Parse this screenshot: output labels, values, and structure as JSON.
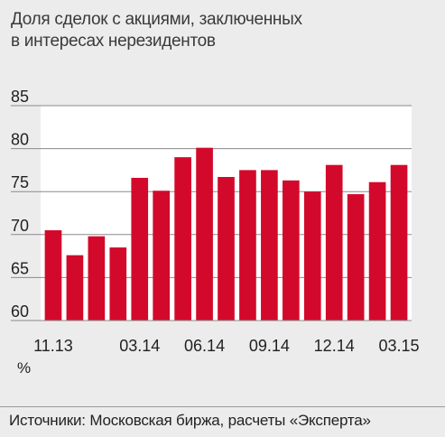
{
  "title_line1": "Доля сделок с акциями, заключенных",
  "title_line2": "в интересах нерезидентов",
  "unit": "%",
  "source": "Источники: Московская биржа, расчеты «Эксперта»",
  "colors": {
    "bar": "#d3092b",
    "background": "#ececec",
    "plot_bg": "#ffffff"
  },
  "chart_data": {
    "type": "bar",
    "title": "Доля сделок с акциями, заключенных в интересах нерезидентов",
    "ylabel": "%",
    "ylim": [
      60,
      85
    ],
    "yticks": [
      60,
      65,
      70,
      75,
      80,
      85
    ],
    "grid": true,
    "categories": [
      "11.13",
      "12.13",
      "01.14",
      "02.14",
      "03.14",
      "04.14",
      "05.14",
      "06.14",
      "07.14",
      "08.14",
      "09.14",
      "10.14",
      "11.14",
      "12.14",
      "01.15",
      "02.15",
      "03.15"
    ],
    "xtick_labels": [
      "11.13",
      "",
      "",
      "",
      "03.14",
      "",
      "",
      "06.14",
      "",
      "",
      "09.14",
      "",
      "",
      "12.14",
      "",
      "",
      "03.15"
    ],
    "values": [
      70.5,
      67.6,
      69.8,
      68.5,
      76.6,
      75.1,
      79.0,
      80.1,
      76.7,
      77.5,
      77.5,
      76.3,
      75.0,
      78.1,
      74.7,
      76.1,
      78.1
    ]
  }
}
